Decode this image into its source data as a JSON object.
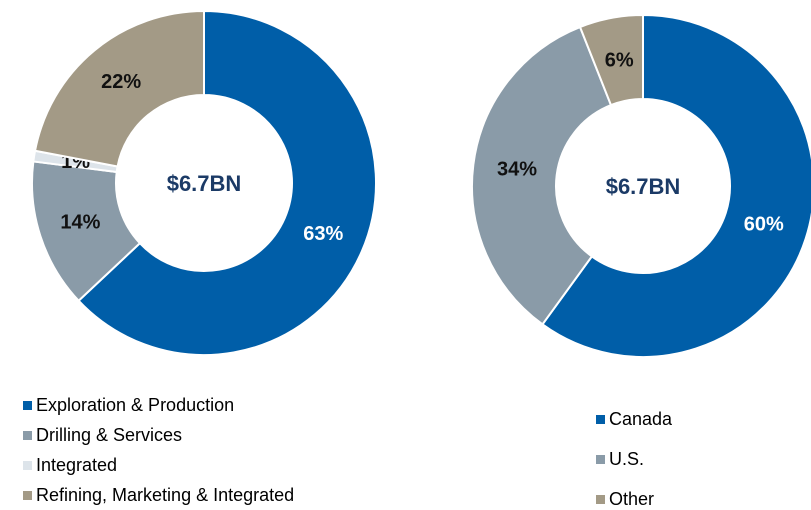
{
  "chart_data": [
    {
      "type": "donut",
      "center_label": "$6.7BN",
      "categories": [
        "Exploration & Production",
        "Drilling & Services",
        "Integrated",
        "Refining, Marketing & Integrated"
      ],
      "values": [
        63,
        14,
        1,
        22
      ],
      "value_labels": [
        "63%",
        "14%",
        "1%",
        "22%"
      ],
      "colors": [
        "#005ea8",
        "#8a9ba8",
        "#dde4ea",
        "#a39a86"
      ]
    },
    {
      "type": "donut",
      "center_label": "$6.7BN",
      "categories": [
        "Canada",
        "U.S.",
        "Other"
      ],
      "values": [
        60,
        34,
        6
      ],
      "value_labels": [
        "60%",
        "34%",
        "6%"
      ],
      "colors": [
        "#005ea8",
        "#8a9ba8",
        "#a39a86"
      ]
    }
  ]
}
